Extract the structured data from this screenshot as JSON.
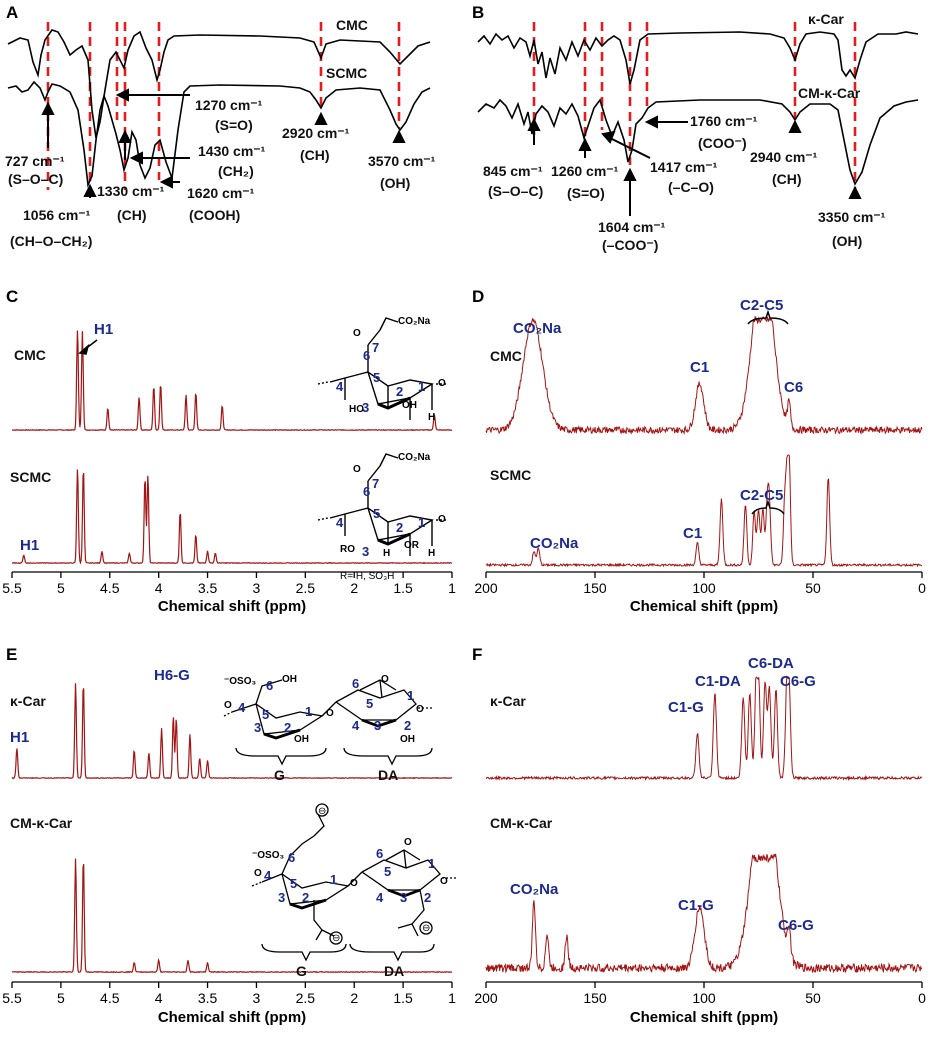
{
  "figure": {
    "panel_letters": [
      "A",
      "B",
      "C",
      "D",
      "E",
      "F"
    ]
  },
  "chart_data": [
    {
      "panel": "A",
      "type": "line",
      "title": "",
      "series": [
        {
          "name": "CMC",
          "color": "#000000"
        },
        {
          "name": "SCMC",
          "color": "#000000"
        }
      ],
      "marker_color": "#e11d1d",
      "annotations": [
        {
          "line1": "727 cm⁻¹",
          "line2": "(S–O–C)"
        },
        {
          "line1": "1056 cm⁻¹",
          "line2": "(CH–O–CH₂)"
        },
        {
          "line1": "1330 cm⁻¹",
          "line2": "(CH)"
        },
        {
          "line1": "1270 cm⁻¹",
          "line2": "(S=O)"
        },
        {
          "line1": "1430 cm⁻¹",
          "line2": "(CH₂)"
        },
        {
          "line1": "1620 cm⁻¹",
          "line2": "(COOH)"
        },
        {
          "line1": "2920 cm⁻¹",
          "line2": "(CH)"
        },
        {
          "line1": "3570 cm⁻¹",
          "line2": "(OH)"
        }
      ]
    },
    {
      "panel": "B",
      "type": "line",
      "title": "",
      "series": [
        {
          "name": "κ-Car",
          "color": "#000000"
        },
        {
          "name": "CM-κ-Car",
          "color": "#000000"
        }
      ],
      "marker_color": "#e11d1d",
      "annotations": [
        {
          "line1": "845 cm⁻¹",
          "line2": "(S–O–C)"
        },
        {
          "line1": "1260 cm⁻¹",
          "line2": "(S=O)"
        },
        {
          "line1": "1417 cm⁻¹",
          "line2": "(–C–O)"
        },
        {
          "line1": "1604 cm⁻¹",
          "line2": "(–COO⁻)"
        },
        {
          "line1": "1760 cm⁻¹",
          "line2": "(COO⁻)"
        },
        {
          "line1": "2940 cm⁻¹",
          "line2": "(CH)"
        },
        {
          "line1": "3350 cm⁻¹",
          "line2": "(OH)"
        }
      ]
    },
    {
      "panel": "C",
      "type": "line",
      "xlabel": "Chemical shift (ppm)",
      "xlim": [
        5.5,
        1
      ],
      "x_ticks": [
        "5.5",
        "5",
        "4.5",
        "4",
        "3.5",
        "3",
        "2.5",
        "2",
        "1.5",
        "1"
      ],
      "series": [
        {
          "name": "CMC",
          "color": "#a31515",
          "peaks": [
            [
              4.83,
              0.92
            ],
            [
              4.78,
              0.9
            ],
            [
              4.52,
              0.2
            ],
            [
              4.2,
              0.3
            ],
            [
              4.05,
              0.4
            ],
            [
              3.98,
              0.42
            ],
            [
              3.72,
              0.32
            ],
            [
              3.62,
              0.34
            ],
            [
              3.35,
              0.22
            ],
            [
              1.18,
              0.14
            ]
          ]
        },
        {
          "name": "SCMC",
          "color": "#a31515",
          "peaks": [
            [
              5.38,
              0.08
            ],
            [
              4.83,
              0.95
            ],
            [
              4.77,
              0.95
            ],
            [
              4.58,
              0.12
            ],
            [
              4.3,
              0.1
            ],
            [
              4.14,
              0.86
            ],
            [
              4.11,
              0.88
            ],
            [
              3.78,
              0.52
            ],
            [
              3.62,
              0.28
            ],
            [
              3.5,
              0.12
            ],
            [
              3.42,
              0.1
            ]
          ]
        }
      ],
      "labels": [
        "H1",
        "H1"
      ],
      "structure": {
        "substituent": "CO₂Na",
        "r_group": "R= H, SO₃H"
      }
    },
    {
      "panel": "D",
      "type": "line",
      "xlabel": "Chemical shift (ppm)",
      "xlim": [
        200,
        0
      ],
      "x_ticks": [
        "200",
        "150",
        "100",
        "50",
        "0"
      ],
      "series": [
        {
          "name": "CMC",
          "color": "#a31515",
          "peaks": [
            [
              178.5,
              1.0
            ],
            [
              102,
              0.42
            ],
            [
              74,
              0.78
            ],
            [
              72,
              0.82
            ],
            [
              61,
              0.22
            ]
          ]
        },
        {
          "name": "SCMC",
          "color": "#a31515",
          "peaks": [
            [
              178,
              0.12
            ],
            [
              176,
              0.15
            ],
            [
              103,
              0.2
            ],
            [
              92,
              0.6
            ],
            [
              81,
              0.55
            ],
            [
              77,
              0.48
            ],
            [
              75,
              0.5
            ],
            [
              73,
              0.5
            ],
            [
              71,
              0.52
            ],
            [
              70,
              0.5
            ],
            [
              63,
              0.5
            ],
            [
              62,
              0.55
            ],
            [
              61,
              0.95
            ],
            [
              43,
              0.8
            ]
          ]
        }
      ],
      "labels": [
        "CO₂Na",
        "C1",
        "C2-C5",
        "C6",
        "CO₂Na",
        "C1",
        "C2-C5"
      ]
    },
    {
      "panel": "E",
      "type": "line",
      "xlabel": "Chemical shift (ppm)",
      "xlim": [
        5.5,
        1
      ],
      "x_ticks": [
        "5.5",
        "5",
        "4.5",
        "4",
        "3.5",
        "3",
        "2.5",
        "2",
        "1.5",
        "1"
      ],
      "series": [
        {
          "name": "κ-Car",
          "color": "#a31515",
          "peaks": [
            [
              5.45,
              0.3
            ],
            [
              4.85,
              0.95
            ],
            [
              4.77,
              0.95
            ],
            [
              4.25,
              0.28
            ],
            [
              4.1,
              0.25
            ],
            [
              3.97,
              0.5
            ],
            [
              3.85,
              0.62
            ],
            [
              3.82,
              0.6
            ],
            [
              3.68,
              0.44
            ],
            [
              3.58,
              0.2
            ],
            [
              3.5,
              0.18
            ]
          ]
        },
        {
          "name": "CM-κ-Car",
          "color": "#a31515",
          "peaks": [
            [
              4.85,
              0.95
            ],
            [
              4.77,
              0.95
            ],
            [
              4.25,
              0.08
            ],
            [
              4.0,
              0.1
            ],
            [
              3.7,
              0.1
            ],
            [
              3.5,
              0.08
            ]
          ]
        }
      ],
      "labels": [
        "H1",
        "H6-G"
      ],
      "structure": {
        "units": [
          "G",
          "DA"
        ]
      }
    },
    {
      "panel": "F",
      "type": "line",
      "xlabel": "Chemical shift (ppm)",
      "xlim": [
        200,
        0
      ],
      "x_ticks": [
        "200",
        "150",
        "100",
        "50",
        "0"
      ],
      "series": [
        {
          "name": "κ-Car",
          "color": "#a31515",
          "peaks": [
            [
              103,
              0.45
            ],
            [
              95,
              0.85
            ],
            [
              82,
              0.8
            ],
            [
              79,
              0.85
            ],
            [
              76,
              0.95
            ],
            [
              75,
              0.9
            ],
            [
              72,
              0.95
            ],
            [
              70,
              0.9
            ],
            [
              67,
              0.88
            ],
            [
              62,
              0.8
            ],
            [
              61,
              0.82
            ]
          ]
        },
        {
          "name": "CM-κ-Car",
          "color": "#a31515",
          "peaks": [
            [
              178,
              0.6
            ],
            [
              172,
              0.3
            ],
            [
              163,
              0.28
            ],
            [
              102,
              0.55
            ],
            [
              74,
              0.9
            ],
            [
              71,
              0.95
            ],
            [
              61,
              0.25
            ]
          ]
        }
      ],
      "labels": [
        "C1-DA",
        "C6-DA",
        "C6-G",
        "C1-G",
        "CO₂Na",
        "C1-G",
        "C6-G"
      ]
    }
  ]
}
